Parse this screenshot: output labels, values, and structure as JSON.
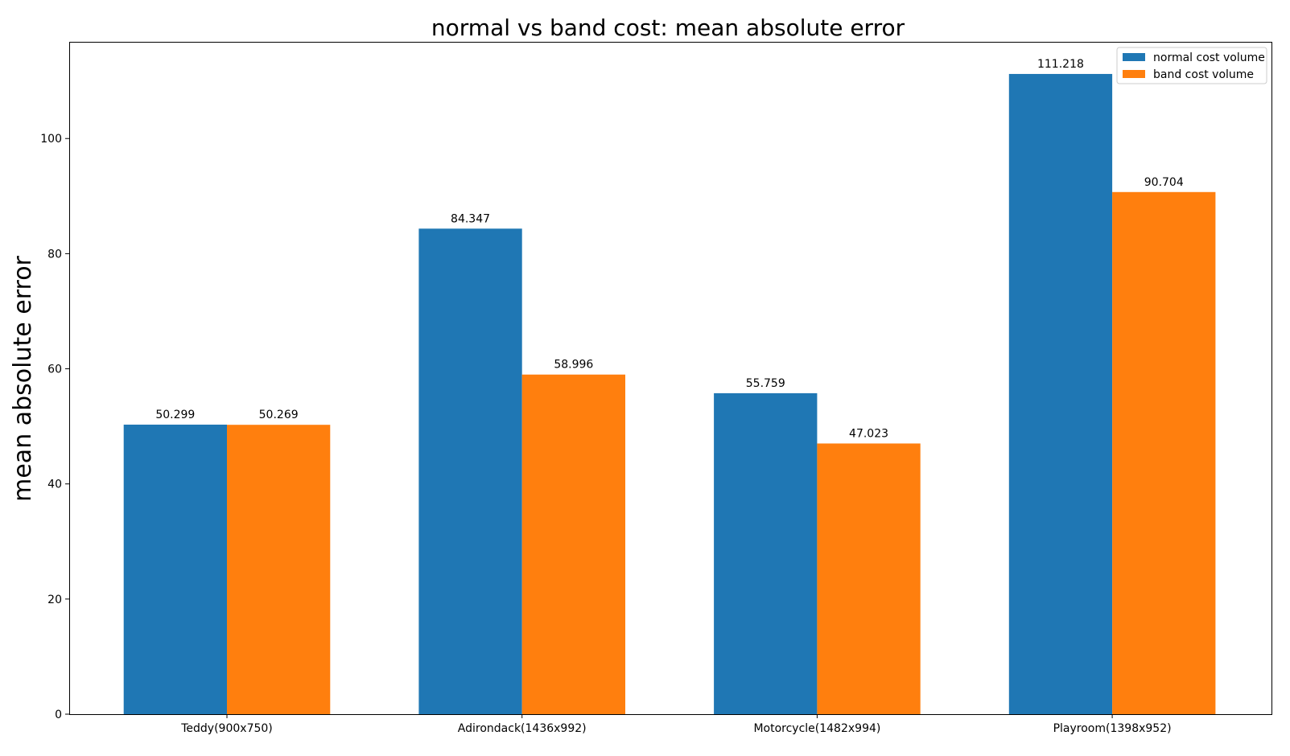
{
  "chart_data": {
    "type": "bar",
    "title": "normal vs band cost: mean absolute error",
    "xlabel": "",
    "ylabel": "mean absolute error",
    "categories": [
      "Teddy(900x750)",
      "Adirondack(1436x992)",
      "Motorcycle(1482x994)",
      "Playroom(1398x952)"
    ],
    "series": [
      {
        "name": "normal cost volume",
        "color": "#1f77b4",
        "values": [
          50.299,
          84.347,
          55.759,
          111.218
        ],
        "labels": [
          "50.299",
          "84.347",
          "55.759",
          "111.218"
        ]
      },
      {
        "name": "band   cost volume",
        "color": "#ff7f0e",
        "values": [
          50.269,
          58.996,
          47.023,
          90.704
        ],
        "labels": [
          "50.269",
          "58.996",
          "47.023",
          "90.704"
        ]
      }
    ],
    "ylim": [
      0,
      116.8
    ],
    "yticks": [
      0,
      20,
      40,
      60,
      80,
      100
    ],
    "grid": false,
    "legend_position": "top-right"
  }
}
